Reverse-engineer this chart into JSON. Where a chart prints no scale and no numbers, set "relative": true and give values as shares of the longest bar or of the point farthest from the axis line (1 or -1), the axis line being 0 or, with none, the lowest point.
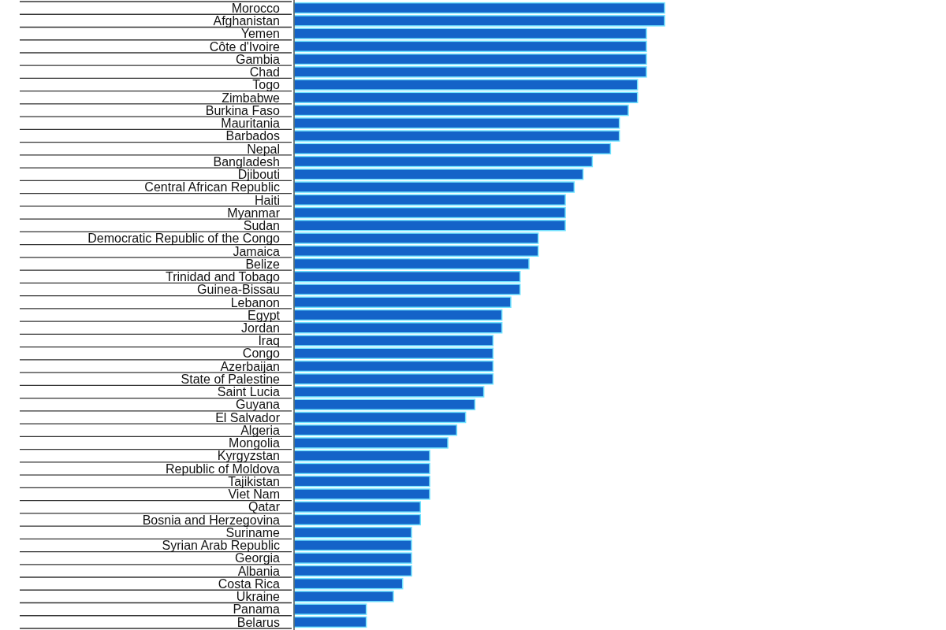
{
  "chart_data": {
    "type": "bar",
    "orientation": "horizontal",
    "relative": true,
    "categories": [
      "Morocco",
      "Afghanistan",
      "Yemen",
      "Côte d'Ivoire",
      "Gambia",
      "Chad",
      "Togo",
      "Zimbabwe",
      "Burkina Faso",
      "Mauritania",
      "Barbados",
      "Nepal",
      "Bangladesh",
      "Djibouti",
      "Central African Republic",
      "Haiti",
      "Myanmar",
      "Sudan",
      "Democratic Republic of the Congo",
      "Jamaica",
      "Belize",
      "Trinidad and Tobago",
      "Guinea-Bissau",
      "Lebanon",
      "Egypt",
      "Jordan",
      "Iraq",
      "Congo",
      "Azerbaijan",
      "State of Palestine",
      "Saint Lucia",
      "Guyana",
      "El Salvador",
      "Algeria",
      "Mongolia",
      "Kyrgyzstan",
      "Republic of Moldova",
      "Tajikistan",
      "Viet Nam",
      "Qatar",
      "Bosnia and Herzegovina",
      "Suriname",
      "Syrian Arab Republic",
      "Georgia",
      "Albania",
      "Costa Rica",
      "Ukraine",
      "Panama",
      "Belarus"
    ],
    "values": [
      1,
      1,
      0.951,
      0.951,
      0.951,
      0.951,
      0.927,
      0.927,
      0.902,
      0.878,
      0.878,
      0.854,
      0.805,
      0.78,
      0.756,
      0.732,
      0.732,
      0.732,
      0.659,
      0.659,
      0.634,
      0.61,
      0.61,
      0.585,
      0.561,
      0.561,
      0.537,
      0.537,
      0.537,
      0.537,
      0.512,
      0.488,
      0.463,
      0.439,
      0.415,
      0.366,
      0.366,
      0.366,
      0.366,
      0.341,
      0.341,
      0.317,
      0.317,
      0.317,
      0.317,
      0.293,
      0.268,
      0.195,
      0.195
    ],
    "color": "#1463c8"
  }
}
